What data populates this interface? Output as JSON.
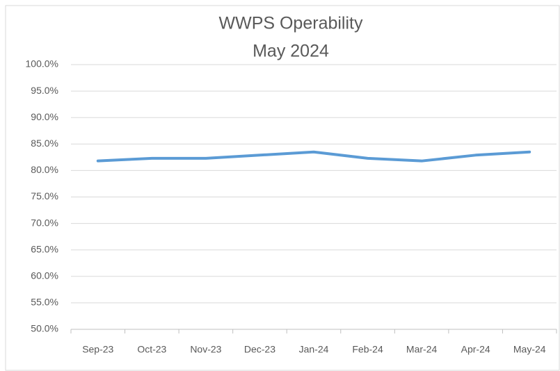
{
  "chart_data": {
    "type": "line",
    "title": "WWPS Operability",
    "subtitle": "May 2024",
    "categories": [
      "Sep-23",
      "Oct-23",
      "Nov-23",
      "Dec-23",
      "Jan-24",
      "Feb-24",
      "Mar-24",
      "Apr-24",
      "May-24"
    ],
    "series": [
      {
        "name": "Operability",
        "color": "#5b9bd5",
        "values": [
          81.8,
          82.3,
          82.3,
          82.9,
          83.5,
          82.3,
          81.8,
          82.9,
          83.5
        ]
      }
    ],
    "ylim": [
      50,
      100
    ],
    "yticks": [
      {
        "value": 50,
        "label": "50.0%"
      },
      {
        "value": 55,
        "label": "55.0%"
      },
      {
        "value": 60,
        "label": "60.0%"
      },
      {
        "value": 65,
        "label": "65.0%"
      },
      {
        "value": 70,
        "label": "70.0%"
      },
      {
        "value": 75,
        "label": "75.0%"
      },
      {
        "value": 80,
        "label": "80.0%"
      },
      {
        "value": 85,
        "label": "85.0%"
      },
      {
        "value": 90,
        "label": "90.0%"
      },
      {
        "value": 95,
        "label": "95.0%"
      },
      {
        "value": 100,
        "label": "100.0%"
      }
    ],
    "grid": true
  }
}
